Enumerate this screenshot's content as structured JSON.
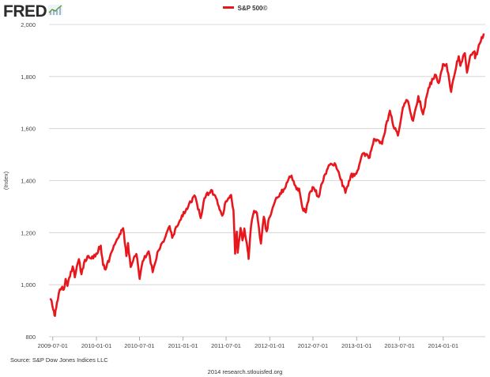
{
  "header": {
    "logo_text": "FRED",
    "logo_icon": "line-chart-icon"
  },
  "legend": {
    "label": "S&P 500©",
    "color": "#e8171e"
  },
  "source_note": "Source: S&P Dow Jones Indices LLC",
  "footer_note": "2014 research.stlouisfed.org",
  "chart_data": {
    "type": "line",
    "ylabel": "(Index)",
    "ylim": [
      800,
      2000
    ],
    "yticks": [
      {
        "value": 800,
        "label": "800"
      },
      {
        "value": 1000,
        "label": "1,000"
      },
      {
        "value": 1200,
        "label": "1,200"
      },
      {
        "value": 1400,
        "label": "1,400"
      },
      {
        "value": 1600,
        "label": "1,600"
      },
      {
        "value": 1800,
        "label": "1,800"
      },
      {
        "value": 2000,
        "label": "2,000"
      }
    ],
    "xlim": [
      "2009-06-15",
      "2014-06-27"
    ],
    "xticks": [
      {
        "value": "2009-07-01",
        "label": "2009-07-01"
      },
      {
        "value": "2010-01-01",
        "label": "2010-01-01"
      },
      {
        "value": "2010-07-01",
        "label": "2010-07-01"
      },
      {
        "value": "2011-01-01",
        "label": "2011-01-01"
      },
      {
        "value": "2011-07-01",
        "label": "2011-07-01"
      },
      {
        "value": "2012-01-01",
        "label": "2012-01-01"
      },
      {
        "value": "2012-07-01",
        "label": "2012-07-01"
      },
      {
        "value": "2013-01-01",
        "label": "2013-01-01"
      },
      {
        "value": "2013-07-01",
        "label": "2013-07-01"
      },
      {
        "value": "2014-01-01",
        "label": "2014-01-01"
      }
    ],
    "grid": "horizontal",
    "legend_position": "top-center",
    "series": [
      {
        "name": "S&P 500©",
        "color": "#e8171e",
        "points": [
          [
            "2009-06-22",
            944
          ],
          [
            "2009-06-29",
            920
          ],
          [
            "2009-07-06",
            899
          ],
          [
            "2009-07-10",
            880
          ],
          [
            "2009-07-15",
            908
          ],
          [
            "2009-07-22",
            940
          ],
          [
            "2009-07-31",
            982
          ],
          [
            "2009-08-10",
            992
          ],
          [
            "2009-08-17",
            982
          ],
          [
            "2009-08-24",
            1022
          ],
          [
            "2009-09-01",
            995
          ],
          [
            "2009-09-15",
            1050
          ],
          [
            "2009-09-23",
            1070
          ],
          [
            "2009-10-02",
            1028
          ],
          [
            "2009-10-19",
            1098
          ],
          [
            "2009-10-30",
            1040
          ],
          [
            "2009-11-10",
            1085
          ],
          [
            "2009-11-24",
            1110
          ],
          [
            "2009-12-10",
            1100
          ],
          [
            "2009-12-31",
            1120
          ],
          [
            "2010-01-19",
            1150
          ],
          [
            "2010-01-29",
            1075
          ],
          [
            "2010-02-08",
            1058
          ],
          [
            "2010-02-26",
            1105
          ],
          [
            "2010-03-15",
            1150
          ],
          [
            "2010-04-01",
            1178
          ],
          [
            "2010-04-23",
            1217
          ],
          [
            "2010-05-07",
            1110
          ],
          [
            "2010-05-14",
            1160
          ],
          [
            "2010-05-25",
            1068
          ],
          [
            "2010-06-04",
            1090
          ],
          [
            "2010-06-18",
            1118
          ],
          [
            "2010-07-02",
            1022
          ],
          [
            "2010-07-15",
            1090
          ],
          [
            "2010-08-09",
            1128
          ],
          [
            "2010-08-26",
            1048
          ],
          [
            "2010-09-15",
            1125
          ],
          [
            "2010-10-15",
            1176
          ],
          [
            "2010-11-05",
            1225
          ],
          [
            "2010-11-16",
            1180
          ],
          [
            "2010-12-15",
            1240
          ],
          [
            "2011-01-15",
            1292
          ],
          [
            "2011-02-18",
            1343
          ],
          [
            "2011-03-16",
            1256
          ],
          [
            "2011-04-01",
            1333
          ],
          [
            "2011-04-29",
            1364
          ],
          [
            "2011-05-20",
            1333
          ],
          [
            "2011-06-15",
            1265
          ],
          [
            "2011-06-30",
            1320
          ],
          [
            "2011-07-22",
            1345
          ],
          [
            "2011-08-01",
            1286
          ],
          [
            "2011-08-08",
            1119
          ],
          [
            "2011-08-15",
            1204
          ],
          [
            "2011-08-19",
            1123
          ],
          [
            "2011-08-31",
            1218
          ],
          [
            "2011-09-08",
            1170
          ],
          [
            "2011-09-16",
            1216
          ],
          [
            "2011-09-30",
            1131
          ],
          [
            "2011-10-04",
            1099
          ],
          [
            "2011-10-14",
            1224
          ],
          [
            "2011-10-27",
            1284
          ],
          [
            "2011-11-08",
            1275
          ],
          [
            "2011-11-25",
            1158
          ],
          [
            "2011-12-07",
            1261
          ],
          [
            "2011-12-19",
            1205
          ],
          [
            "2011-12-30",
            1257
          ],
          [
            "2012-01-25",
            1326
          ],
          [
            "2012-02-29",
            1366
          ],
          [
            "2012-03-20",
            1405
          ],
          [
            "2012-04-02",
            1419
          ],
          [
            "2012-04-23",
            1366
          ],
          [
            "2012-05-04",
            1369
          ],
          [
            "2012-05-18",
            1295
          ],
          [
            "2012-06-01",
            1278
          ],
          [
            "2012-06-19",
            1357
          ],
          [
            "2012-07-03",
            1374
          ],
          [
            "2012-07-25",
            1337
          ],
          [
            "2012-08-17",
            1418
          ],
          [
            "2012-09-14",
            1465
          ],
          [
            "2012-10-05",
            1460
          ],
          [
            "2012-11-15",
            1353
          ],
          [
            "2012-12-07",
            1418
          ],
          [
            "2012-12-31",
            1426
          ],
          [
            "2013-01-25",
            1502
          ],
          [
            "2013-02-25",
            1488
          ],
          [
            "2013-03-15",
            1560
          ],
          [
            "2013-04-05",
            1553
          ],
          [
            "2013-04-18",
            1541
          ],
          [
            "2013-05-21",
            1669
          ],
          [
            "2013-06-05",
            1608
          ],
          [
            "2013-06-24",
            1573
          ],
          [
            "2013-07-15",
            1682
          ],
          [
            "2013-08-02",
            1709
          ],
          [
            "2013-08-27",
            1630
          ],
          [
            "2013-09-18",
            1725
          ],
          [
            "2013-10-08",
            1655
          ],
          [
            "2013-10-31",
            1756
          ],
          [
            "2013-11-27",
            1807
          ],
          [
            "2013-12-13",
            1775
          ],
          [
            "2013-12-31",
            1848
          ],
          [
            "2014-01-15",
            1848
          ],
          [
            "2014-02-03",
            1741
          ],
          [
            "2014-02-28",
            1859
          ],
          [
            "2014-03-07",
            1878
          ],
          [
            "2014-03-14",
            1841
          ],
          [
            "2014-04-02",
            1890
          ],
          [
            "2014-04-11",
            1815
          ],
          [
            "2014-04-24",
            1878
          ],
          [
            "2014-05-13",
            1897
          ],
          [
            "2014-05-15",
            1870
          ],
          [
            "2014-06-04",
            1927
          ],
          [
            "2014-06-20",
            1962
          ]
        ]
      }
    ]
  }
}
